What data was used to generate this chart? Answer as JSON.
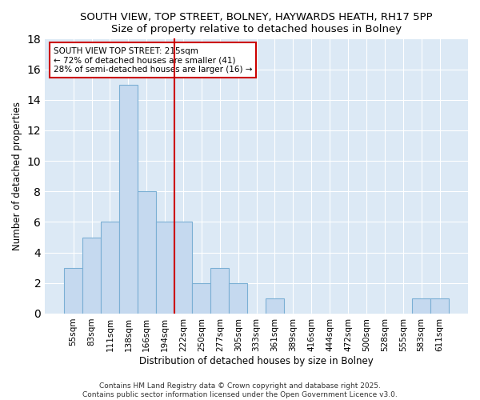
{
  "title": "SOUTH VIEW, TOP STREET, BOLNEY, HAYWARDS HEATH, RH17 5PP",
  "subtitle": "Size of property relative to detached houses in Bolney",
  "xlabel": "Distribution of detached houses by size in Bolney",
  "ylabel": "Number of detached properties",
  "categories": [
    "55sqm",
    "83sqm",
    "111sqm",
    "138sqm",
    "166sqm",
    "194sqm",
    "222sqm",
    "250sqm",
    "277sqm",
    "305sqm",
    "333sqm",
    "361sqm",
    "389sqm",
    "416sqm",
    "444sqm",
    "472sqm",
    "500sqm",
    "528sqm",
    "555sqm",
    "583sqm",
    "611sqm"
  ],
  "values": [
    3,
    5,
    6,
    15,
    8,
    6,
    6,
    2,
    3,
    2,
    0,
    1,
    0,
    0,
    0,
    0,
    0,
    0,
    0,
    1,
    1
  ],
  "ref_line_x": 6,
  "annotation_text_line1": "SOUTH VIEW TOP STREET: 215sqm",
  "annotation_text_line2": "← 72% of detached houses are smaller (41)",
  "annotation_text_line3": "28% of semi-detached houses are larger (16) →",
  "annotation_box_color": "#ffffff",
  "annotation_box_edge_color": "#cc0000",
  "ref_line_color": "#cc0000",
  "bar_color": "#c5d9ef",
  "bar_edge_color": "#7bafd4",
  "background_color": "#ffffff",
  "plot_background_color": "#dce9f5",
  "footer_line1": "Contains HM Land Registry data © Crown copyright and database right 2025.",
  "footer_line2": "Contains public sector information licensed under the Open Government Licence v3.0.",
  "ylim": [
    0,
    18
  ],
  "title_fontsize": 9.5,
  "subtitle_fontsize": 9,
  "axis_label_fontsize": 8.5,
  "tick_fontsize": 7.5,
  "annotation_fontsize": 7.5,
  "footer_fontsize": 6.5
}
